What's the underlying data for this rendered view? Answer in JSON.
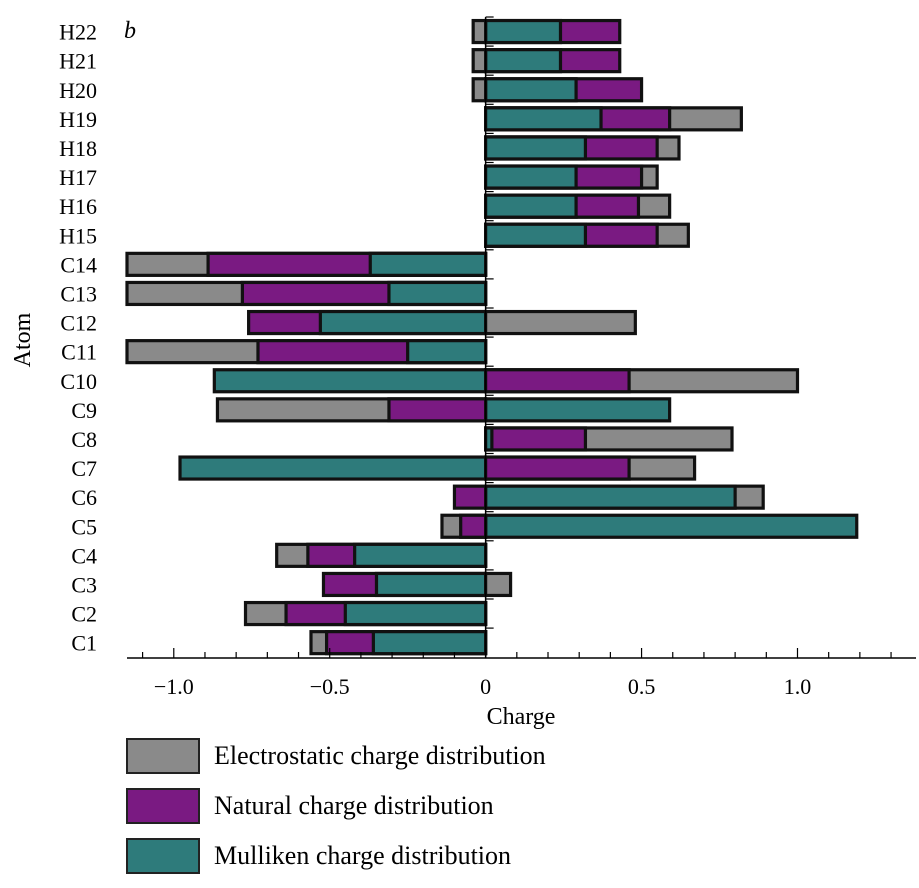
{
  "chart_data": {
    "type": "bar",
    "orientation": "horizontal",
    "panel_label": "b",
    "xlabel": "Charge",
    "ylabel": "Atom",
    "xlim": [
      -1.15,
      1.38
    ],
    "x_ticks": [
      -1.0,
      -0.5,
      0,
      0.5,
      1.0
    ],
    "x_tick_labels": [
      "−1.0",
      "−0.5",
      "0",
      "0.5",
      "1.0"
    ],
    "categories": [
      "H22",
      "H21",
      "H20",
      "H19",
      "H18",
      "H17",
      "H16",
      "H15",
      "C14",
      "C13",
      "C12",
      "C11",
      "C10",
      "C9",
      "C8",
      "C7",
      "C6",
      "C5",
      "C4",
      "C3",
      "C2",
      "C1"
    ],
    "series": [
      {
        "name": "Electrostatic charge distribution",
        "color": "#8a8a8a",
        "values": [
          -0.04,
          -0.04,
          -0.04,
          0.82,
          0.62,
          0.55,
          0.59,
          0.65,
          -1.15,
          -1.15,
          0.48,
          -1.15,
          1.0,
          -0.86,
          0.79,
          0.67,
          0.89,
          -0.14,
          -0.67,
          0.08,
          -0.77,
          -0.56
        ]
      },
      {
        "name": "Natural charge distribution",
        "color": "#7a1a82",
        "values": [
          0.43,
          0.43,
          0.5,
          0.59,
          0.55,
          0.5,
          0.49,
          0.55,
          -0.89,
          -0.78,
          -0.76,
          -0.73,
          0.46,
          -0.31,
          0.32,
          0.46,
          -0.1,
          -0.08,
          -0.57,
          -0.52,
          -0.64,
          -0.51
        ]
      },
      {
        "name": "Mulliken charge distribution",
        "color": "#2e7b7b",
        "values": [
          0.24,
          0.24,
          0.29,
          0.37,
          0.32,
          0.29,
          0.29,
          0.32,
          -0.37,
          -0.31,
          -0.53,
          -0.25,
          -0.87,
          0.59,
          0.02,
          -0.98,
          0.8,
          1.19,
          -0.42,
          -0.35,
          -0.45,
          -0.36
        ]
      }
    ],
    "legend_position": "bottom-left",
    "grid": false
  }
}
